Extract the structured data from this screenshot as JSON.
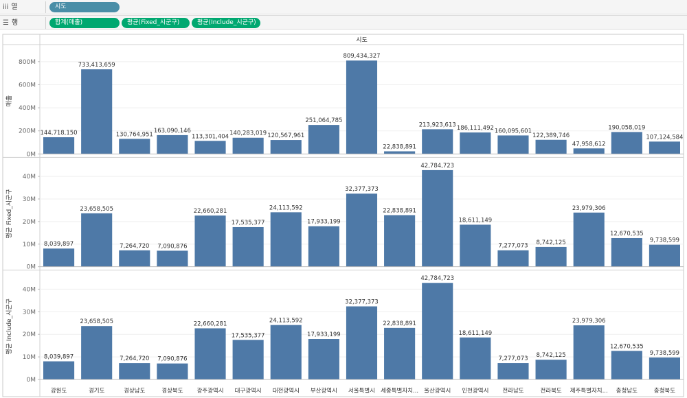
{
  "shelves": {
    "columns": {
      "label": "열",
      "icon": "iii",
      "pills": [
        "시도"
      ]
    },
    "rows": {
      "label": "행",
      "icon": "☰",
      "pills": [
        "합계(매출)",
        "평균(Fixed_시군구)",
        "평균(Include_시군구)"
      ]
    }
  },
  "colors": {
    "bar": "#4e79a7",
    "dimension_pill": "#4a8ea7",
    "measure_pill": "#00a870"
  },
  "chart_data": {
    "type": "bar",
    "column_header": "시도",
    "categories": [
      "강원도",
      "경기도",
      "경상남도",
      "경상북도",
      "광주광역시",
      "대구광역시",
      "대전광역시",
      "부산광역시",
      "서울특별시",
      "세종특별자치...",
      "울산광역시",
      "인천광역시",
      "전라남도",
      "전라북도",
      "제주특별자치...",
      "충청남도",
      "충청북도"
    ],
    "series": [
      {
        "name": "매출",
        "axis_title": "매출",
        "ylim": [
          0,
          900000000
        ],
        "ticks": [
          0,
          200000000,
          400000000,
          600000000,
          800000000
        ],
        "tick_labels": [
          "0M",
          "200M",
          "400M",
          "600M",
          "800M"
        ],
        "values": [
          144718150,
          733413659,
          130764951,
          163090146,
          113301404,
          140283019,
          120567961,
          251064785,
          809434327,
          22838891,
          213923613,
          186111492,
          160095601,
          122389746,
          47958612,
          190058019,
          107124584
        ],
        "labels": [
          "144,718,150",
          "733,413,659",
          "130,764,951",
          "163,090,146",
          "113,301,404",
          "140,283,019",
          "120,567,961",
          "251,064,785",
          "809,434,327",
          "22,838,891",
          "213,923,613",
          "186,111,492",
          "160,095,601",
          "122,389,746",
          "47,958,612",
          "190,058,019",
          "107,124,584"
        ]
      },
      {
        "name": "평균 Fixed_시군구",
        "axis_title": "평균 Fixed_시군구",
        "ylim": [
          0,
          46000000
        ],
        "ticks": [
          0,
          10000000,
          20000000,
          30000000,
          40000000
        ],
        "tick_labels": [
          "0M",
          "10M",
          "20M",
          "30M",
          "40M"
        ],
        "values": [
          8039897,
          23658505,
          7264720,
          7090876,
          22660281,
          17535377,
          24113592,
          17933199,
          32377373,
          22838891,
          42784723,
          18611149,
          7277073,
          8742125,
          23979306,
          12670535,
          9738599
        ],
        "labels": [
          "8,039,897",
          "23,658,505",
          "7,264,720",
          "7,090,876",
          "22,660,281",
          "17,535,377",
          "24,113,592",
          "17,933,199",
          "32,377,373",
          "22,838,891",
          "42,784,723",
          "18,611,149",
          "7,277,073",
          "8,742,125",
          "23,979,306",
          "12,670,535",
          "9,738,599"
        ]
      },
      {
        "name": "평균 Include_시군구",
        "axis_title": "평균 Include_시군구",
        "ylim": [
          0,
          46000000
        ],
        "ticks": [
          0,
          10000000,
          20000000,
          30000000,
          40000000
        ],
        "tick_labels": [
          "0M",
          "10M",
          "20M",
          "30M",
          "40M"
        ],
        "values": [
          8039897,
          23658505,
          7264720,
          7090876,
          22660281,
          17535377,
          24113592,
          17933199,
          32377373,
          22838891,
          42784723,
          18611149,
          7277073,
          8742125,
          23979306,
          12670535,
          9738599
        ],
        "labels": [
          "8,039,897",
          "23,658,505",
          "7,264,720",
          "7,090,876",
          "22,660,281",
          "17,535,377",
          "24,113,592",
          "17,933,199",
          "32,377,373",
          "22,838,891",
          "42,784,723",
          "18,611,149",
          "7,277,073",
          "8,742,125",
          "23,979,306",
          "12,670,535",
          "9,738,599"
        ]
      }
    ]
  }
}
